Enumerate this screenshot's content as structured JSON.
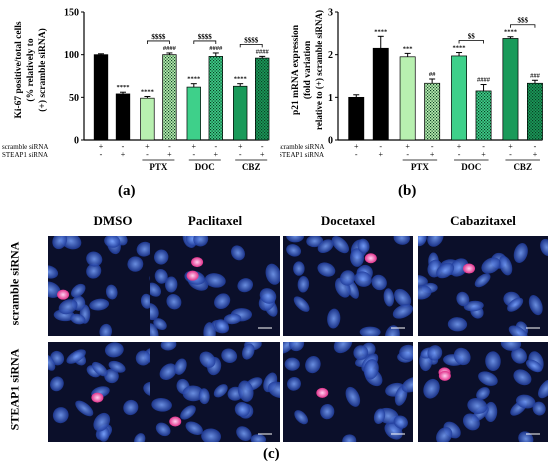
{
  "panel_labels": {
    "a": "(a)",
    "b": "(b)",
    "c": "(c)"
  },
  "chart_data": [
    {
      "type": "bar",
      "ylabel_lines": [
        "Ki-67 positive/total cells",
        "(% relatively to",
        "(+) scramble siRNA)"
      ],
      "ylim": [
        0,
        150
      ],
      "yticks": [
        "0",
        "50",
        "100",
        "150"
      ],
      "categories": [
        "scramble",
        "STEAP1",
        "PTX scramble",
        "PTX STEAP1",
        "DOC scramble",
        "DOC STEAP1",
        "CBZ scramble",
        "CBZ STEAP1"
      ],
      "values": [
        100,
        54,
        49,
        100,
        62,
        98,
        63,
        96
      ],
      "errors": [
        1,
        2,
        2,
        2,
        4,
        4,
        3,
        2
      ],
      "colors": [
        "#000000",
        "#000000",
        "#b8f0b0",
        "#b8f0b0",
        "#3ed08a",
        "#3ed08a",
        "#1a9a5a",
        "#1a9a5a"
      ],
      "patterned": [
        false,
        false,
        false,
        true,
        false,
        true,
        false,
        true
      ],
      "sig_above": [
        "",
        "****",
        "****",
        "####",
        "****",
        "####",
        "****",
        "####"
      ],
      "brackets": [
        "$$$$",
        "$$$$",
        "$$$$"
      ],
      "row_labels": [
        "scramble siRNA",
        "STEAP1 siRNA"
      ],
      "plus_minus_scr": [
        "+",
        "-",
        "+",
        "-",
        "+",
        "-",
        "+",
        "-"
      ],
      "plus_minus_st": [
        "-",
        "+",
        "-",
        "+",
        "-",
        "+",
        "-",
        "+"
      ],
      "group_labels": [
        "PTX",
        "DOC",
        "CBZ"
      ]
    },
    {
      "type": "bar",
      "ylabel_lines": [
        "p21 mRNA expression",
        "(fold variation",
        "relative to (+) scramble siRNA)"
      ],
      "ylim": [
        0,
        3
      ],
      "yticks": [
        "0",
        "1",
        "2",
        "3"
      ],
      "categories": [
        "scramble",
        "STEAP1",
        "PTX scramble",
        "PTX STEAP1",
        "DOC scramble",
        "DOC STEAP1",
        "CBZ scramble",
        "CBZ STEAP1"
      ],
      "values": [
        1.0,
        2.15,
        1.95,
        1.33,
        1.97,
        1.15,
        2.38,
        1.33
      ],
      "errors": [
        0.06,
        0.28,
        0.08,
        0.1,
        0.08,
        0.15,
        0.04,
        0.07
      ],
      "colors": [
        "#000000",
        "#000000",
        "#b8f0b0",
        "#b8f0b0",
        "#3ed08a",
        "#3ed08a",
        "#1a9a5a",
        "#1a9a5a"
      ],
      "patterned": [
        false,
        false,
        false,
        true,
        false,
        true,
        false,
        true
      ],
      "sig_above": [
        "",
        "****",
        "***",
        "##",
        "****",
        "####",
        "****",
        "###"
      ],
      "brackets": [
        "",
        "$$",
        "$$$"
      ],
      "row_labels": [
        "scramble siRNA",
        "STEAP1 siRNA"
      ],
      "plus_minus_scr": [
        "+",
        "-",
        "+",
        "-",
        "+",
        "-",
        "+",
        "-"
      ],
      "plus_minus_st": [
        "-",
        "+",
        "-",
        "+",
        "-",
        "+",
        "-",
        "+"
      ],
      "group_labels": [
        "PTX",
        "DOC",
        "CBZ"
      ]
    }
  ],
  "micrographs": {
    "columns": [
      "DMSO",
      "Paclitaxel",
      "Docetaxel",
      "Cabazitaxel"
    ],
    "rows": [
      "scramble siRNA",
      "STEAP1 siRNA"
    ]
  }
}
